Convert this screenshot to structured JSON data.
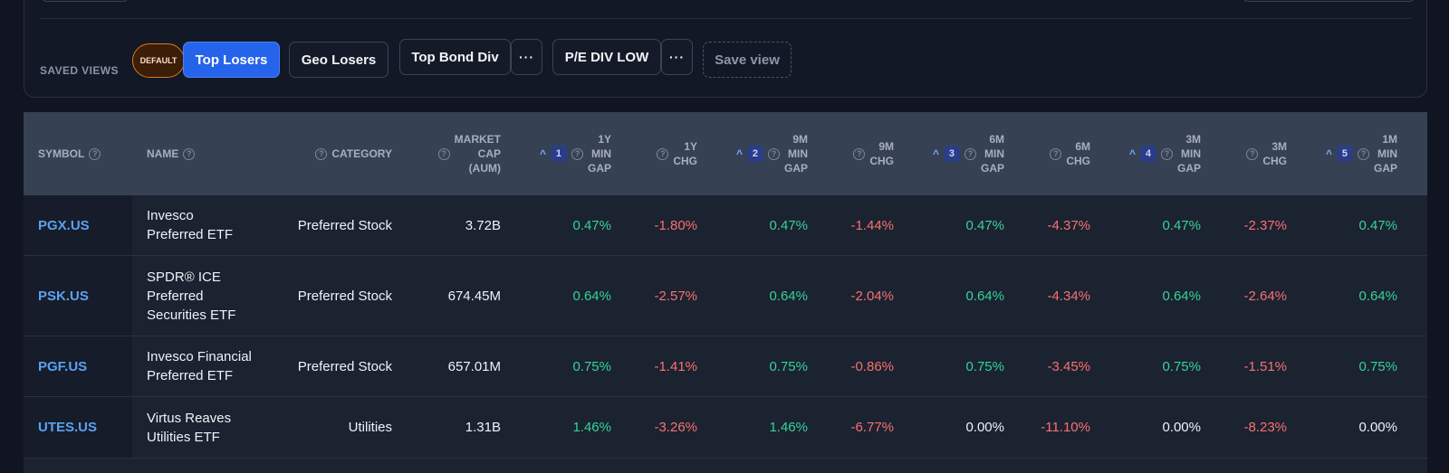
{
  "saved_views": {
    "label": "SAVED VIEWS",
    "default_badge": "DEFAULT",
    "views": [
      "Top Losers",
      "Geo Losers",
      "Top Bond Div",
      "P/E DIV LOW"
    ],
    "more_label": "···",
    "save_label": "Save view"
  },
  "table": {
    "headers": {
      "symbol": "SYMBOL",
      "name": "NAME",
      "category": "CATEGORY",
      "market_cap": [
        "MARKET",
        "CAP",
        "(AUM)"
      ],
      "y1_gap": [
        "1Y",
        "MIN",
        "GAP"
      ],
      "y1_chg": [
        "1Y",
        "CHG"
      ],
      "m9_gap": [
        "9M",
        "MIN",
        "GAP"
      ],
      "m9_chg": [
        "9M",
        "CHG"
      ],
      "m6_gap": [
        "6M",
        "MIN",
        "GAP"
      ],
      "m6_chg": [
        "6M",
        "CHG"
      ],
      "m3_gap": [
        "3M",
        "MIN",
        "GAP"
      ],
      "m3_chg": [
        "3M",
        "CHG"
      ],
      "m1_gap": [
        "1M",
        "MIN",
        "GAP"
      ],
      "sort_ranks": [
        "1",
        "2",
        "3",
        "4",
        "5"
      ],
      "sort_caret": "^",
      "help": "?"
    },
    "rows": [
      {
        "symbol": "PGX.US",
        "name": [
          "Invesco",
          "Preferred ETF"
        ],
        "category": "Preferred Stock",
        "market_cap": "3.72B",
        "values": [
          "0.47%",
          "-1.80%",
          "0.47%",
          "-1.44%",
          "0.47%",
          "-4.37%",
          "0.47%",
          "-2.37%",
          "0.47%"
        ]
      },
      {
        "symbol": "PSK.US",
        "name": [
          "SPDR® ICE",
          "Preferred",
          "Securities ETF"
        ],
        "category": "Preferred Stock",
        "market_cap": "674.45M",
        "values": [
          "0.64%",
          "-2.57%",
          "0.64%",
          "-2.04%",
          "0.64%",
          "-4.34%",
          "0.64%",
          "-2.64%",
          "0.64%"
        ]
      },
      {
        "symbol": "PGF.US",
        "name": [
          "Invesco Financial",
          "Preferred ETF"
        ],
        "category": "Preferred Stock",
        "market_cap": "657.01M",
        "values": [
          "0.75%",
          "-1.41%",
          "0.75%",
          "-0.86%",
          "0.75%",
          "-3.45%",
          "0.75%",
          "-1.51%",
          "0.75%"
        ]
      },
      {
        "symbol": "UTES.US",
        "name": [
          "Virtus Reaves",
          "Utilities ETF"
        ],
        "category": "Utilities",
        "market_cap": "1.31B",
        "values": [
          "1.46%",
          "-3.26%",
          "1.46%",
          "-6.77%",
          "0.00%",
          "-11.10%",
          "0.00%",
          "-8.23%",
          "0.00%"
        ]
      }
    ]
  },
  "colors": {
    "positive": "#34d399",
    "negative": "#f87171",
    "accent": "#2563eb",
    "symbol_link": "#5aa2f2",
    "default_badge": "#d97a22"
  }
}
